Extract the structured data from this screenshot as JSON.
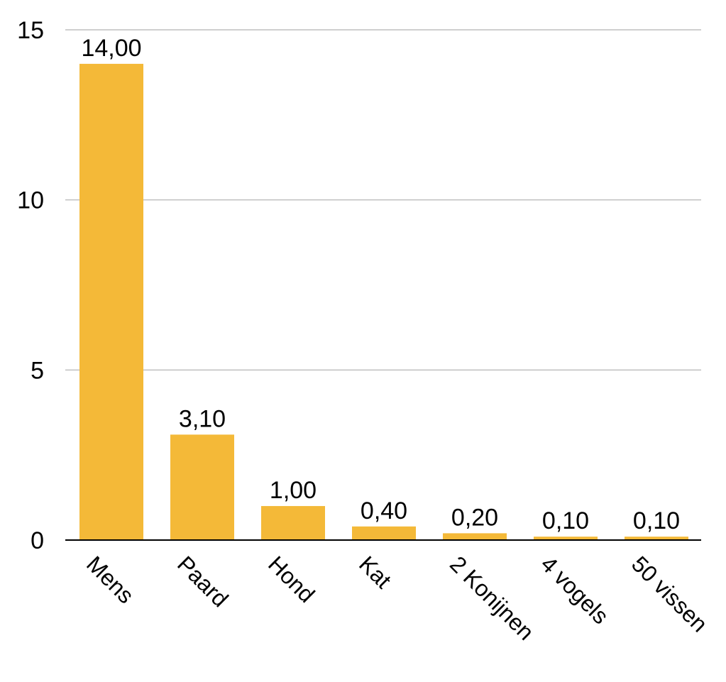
{
  "chart_data": {
    "type": "bar",
    "categories": [
      "Mens",
      "Paard",
      "Hond",
      "Kat",
      "2 Konijnen",
      "4 vogels",
      "50 vissen"
    ],
    "values": [
      14.0,
      3.1,
      1.0,
      0.4,
      0.2,
      0.1,
      0.1
    ],
    "data_labels": [
      "14,00",
      "3,10",
      "1,00",
      "0,40",
      "0,20",
      "0,10",
      "0,10"
    ],
    "y_ticks": [
      0,
      5,
      10,
      15
    ],
    "y_tick_labels": [
      "0",
      "5",
      "10",
      "15"
    ],
    "ylim": [
      0,
      15
    ],
    "title": "",
    "xlabel": "",
    "ylabel": "",
    "grid": true,
    "legend": "none",
    "category_label_rotation_deg": 45,
    "colors": {
      "bar": "#F4B938",
      "grid": "#BFBFBF",
      "axis": "#000000",
      "text": "#000000"
    }
  }
}
